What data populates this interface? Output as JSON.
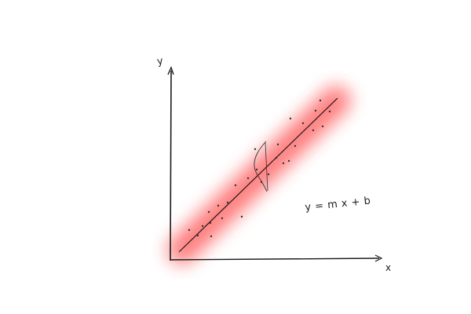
{
  "diagram": {
    "y_axis_label": "y",
    "x_axis_label": "x",
    "equation": "y = m x + b",
    "colors": {
      "ink": "#1a1a1a",
      "band": "#ff2a2a",
      "points": "#333333"
    },
    "band_visible": true,
    "normal_curve_visible": true,
    "regression_line_visible": true
  }
}
